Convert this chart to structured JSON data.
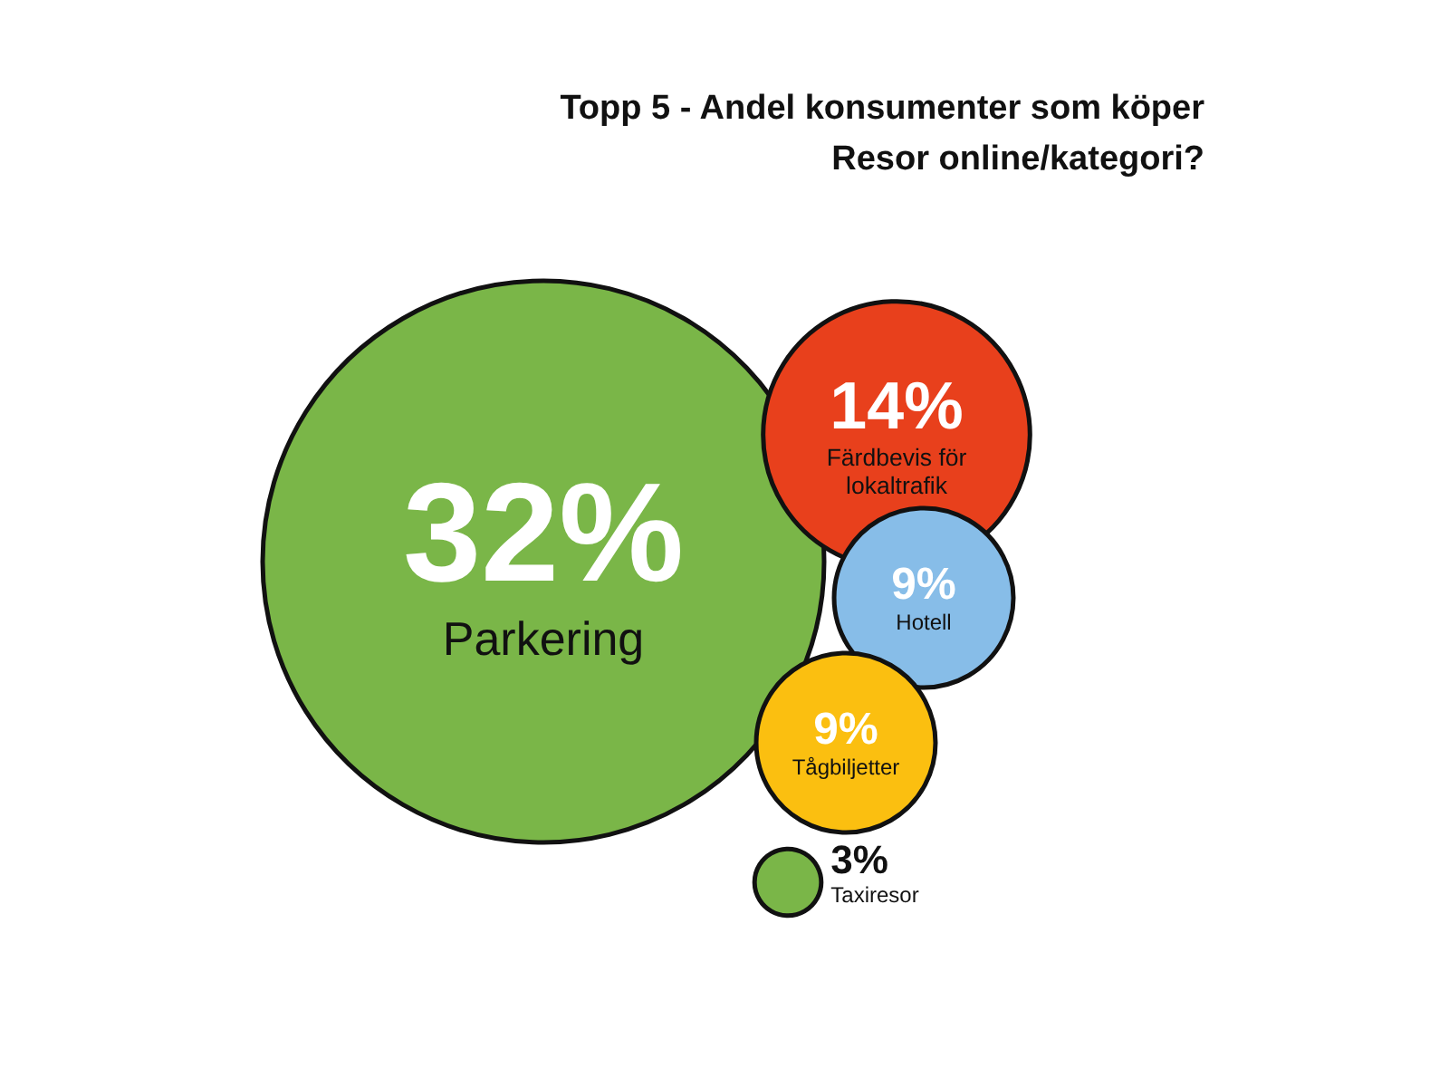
{
  "chart_data": {
    "type": "other",
    "title": "Topp 5 - Andel konsumenter som köper\nResor online/kategori?",
    "categories": [
      "Parkering",
      "Färdbevis för lokaltrafik",
      "Hotell",
      "Tågbiljetter",
      "Taxiresor"
    ],
    "values": [
      32,
      14,
      9,
      9,
      3
    ],
    "value_labels": [
      "32%",
      "14%",
      "9%",
      "9%",
      "3%"
    ],
    "colors": [
      "#7ab648",
      "#e8401c",
      "#87bde8",
      "#fbbf10",
      "#7ab648"
    ]
  }
}
